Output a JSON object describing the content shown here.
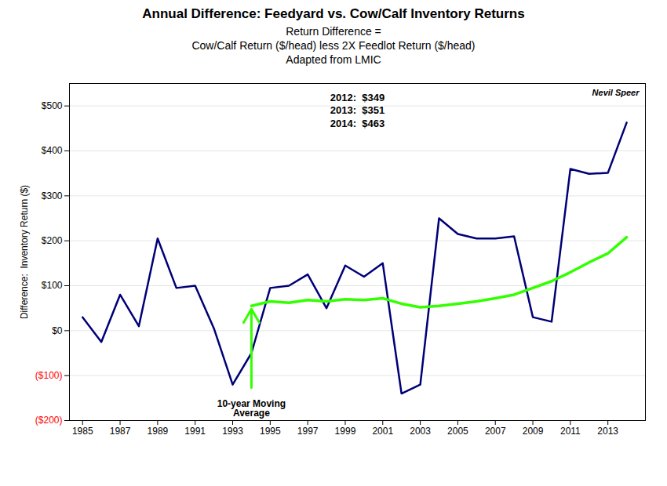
{
  "chart_data": {
    "type": "line",
    "title": "Annual Difference:  Feedyard vs. Cow/Calf Inventory Returns",
    "subtitle": [
      "Return Difference =",
      "Cow/Calf Return ($/head) less 2X Feedlot Return ($/head)",
      "Adapted from LMIC"
    ],
    "ylabel": "Difference:  Inventory Return ($)",
    "x": [
      1985,
      1986,
      1987,
      1988,
      1989,
      1990,
      1991,
      1992,
      1993,
      1994,
      1995,
      1996,
      1997,
      1998,
      1999,
      2000,
      2001,
      2002,
      2003,
      2004,
      2005,
      2006,
      2007,
      2008,
      2009,
      2010,
      2011,
      2012,
      2013,
      2014
    ],
    "series": [
      {
        "color": "#000077",
        "values": [
          30,
          -25,
          80,
          10,
          205,
          95,
          100,
          5,
          -120,
          -50,
          95,
          100,
          125,
          50,
          145,
          120,
          150,
          -140,
          -120,
          250,
          215,
          205,
          205,
          210,
          30,
          20,
          360,
          349,
          351,
          463
        ]
      },
      {
        "color": "#33FF00",
        "values": [
          null,
          null,
          null,
          null,
          null,
          null,
          null,
          null,
          null,
          55,
          65,
          62,
          68,
          65,
          70,
          68,
          72,
          60,
          52,
          55,
          60,
          65,
          72,
          80,
          95,
          110,
          130,
          152,
          172,
          208
        ]
      }
    ],
    "xlim": [
      1984.3,
      2015.0
    ],
    "xticks": [
      1985,
      1987,
      1989,
      1991,
      1993,
      1995,
      1997,
      1999,
      2001,
      2003,
      2005,
      2007,
      2009,
      2011,
      2013
    ],
    "ylim": [
      -200,
      550
    ],
    "yticks": [
      {
        "value": -200,
        "label": "($200)"
      },
      {
        "value": -100,
        "label": "($100)"
      },
      {
        "value": 0,
        "label": "$0"
      },
      {
        "value": 100,
        "label": "$100"
      },
      {
        "value": 200,
        "label": "$200"
      },
      {
        "value": 300,
        "label": "$300"
      },
      {
        "value": 400,
        "label": "$400"
      },
      {
        "value": 500,
        "label": "$500"
      }
    ],
    "grid": true,
    "annotations": [
      "Nevil Speer",
      "2012:  $349\n2013:  $351\n2014:  $463",
      "10-year Moving",
      "Average"
    ]
  }
}
